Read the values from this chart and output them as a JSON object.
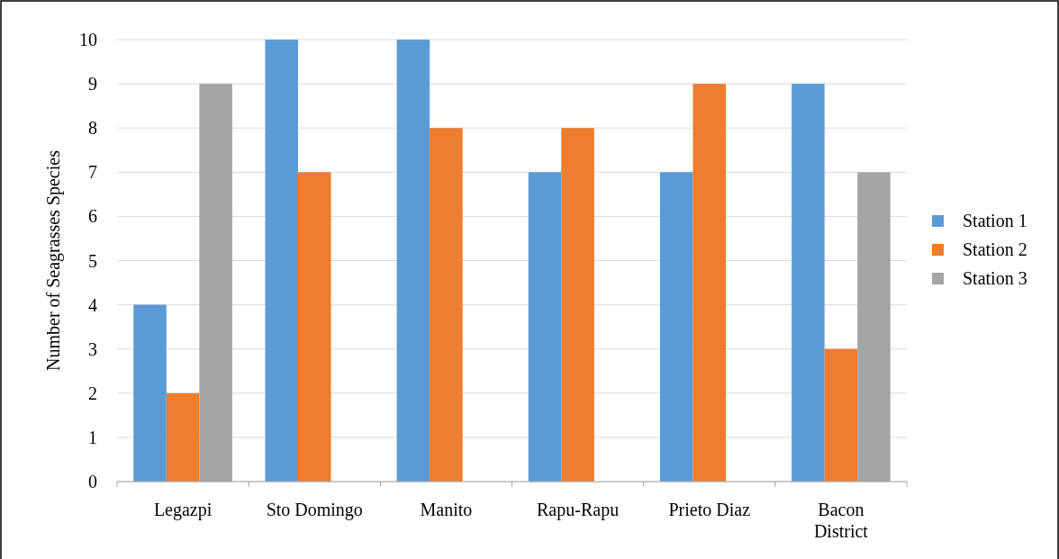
{
  "chart_data": {
    "type": "bar",
    "ylabel": "Number of Seagrasses Species",
    "categories": [
      "Legazpi",
      "Sto Domingo",
      "Manito",
      "Rapu-Rapu",
      "Prieto Diaz",
      "Bacon District"
    ],
    "series": [
      {
        "name": "Station 1",
        "color": "#5b9bd5",
        "values": [
          4,
          10,
          10,
          7,
          7,
          9
        ]
      },
      {
        "name": "Station 2",
        "color": "#ed7d31",
        "values": [
          2,
          7,
          8,
          8,
          9,
          3
        ]
      },
      {
        "name": "Station 3",
        "color": "#a5a5a5",
        "values": [
          9,
          null,
          null,
          null,
          null,
          7
        ]
      }
    ],
    "ylim": [
      0,
      10
    ],
    "yticks": [
      0,
      1,
      2,
      3,
      4,
      5,
      6,
      7,
      8,
      9,
      10
    ],
    "grid": "y",
    "legend": "right"
  }
}
